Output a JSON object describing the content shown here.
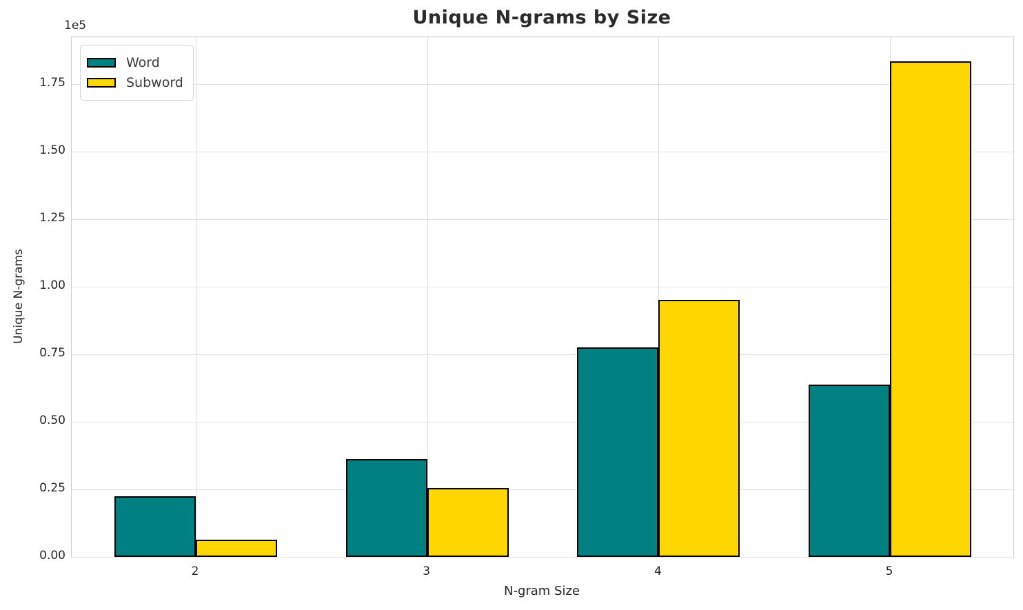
{
  "chart_data": {
    "type": "bar",
    "title": "Unique N-grams by Size",
    "xlabel": "N-gram Size",
    "ylabel": "Unique N-grams",
    "y_offset_label": "1e5",
    "categories": [
      "2",
      "3",
      "4",
      "5"
    ],
    "series": [
      {
        "name": "Word",
        "color": "#008080",
        "values": [
          22500,
          36200,
          77500,
          63900
        ]
      },
      {
        "name": "Subword",
        "color": "#FFD700",
        "values": [
          6500,
          25400,
          95100,
          183400
        ]
      }
    ],
    "ylim": [
      0,
      192350
    ],
    "yticks": [
      0,
      25000,
      50000,
      75000,
      100000,
      125000,
      150000,
      175000
    ],
    "ytick_labels": [
      "0.00",
      "0.25",
      "0.50",
      "0.75",
      "1.00",
      "1.25",
      "1.50",
      "1.75"
    ],
    "grid": true,
    "legend_position": "upper left",
    "bar_edge_color": "#000000"
  }
}
